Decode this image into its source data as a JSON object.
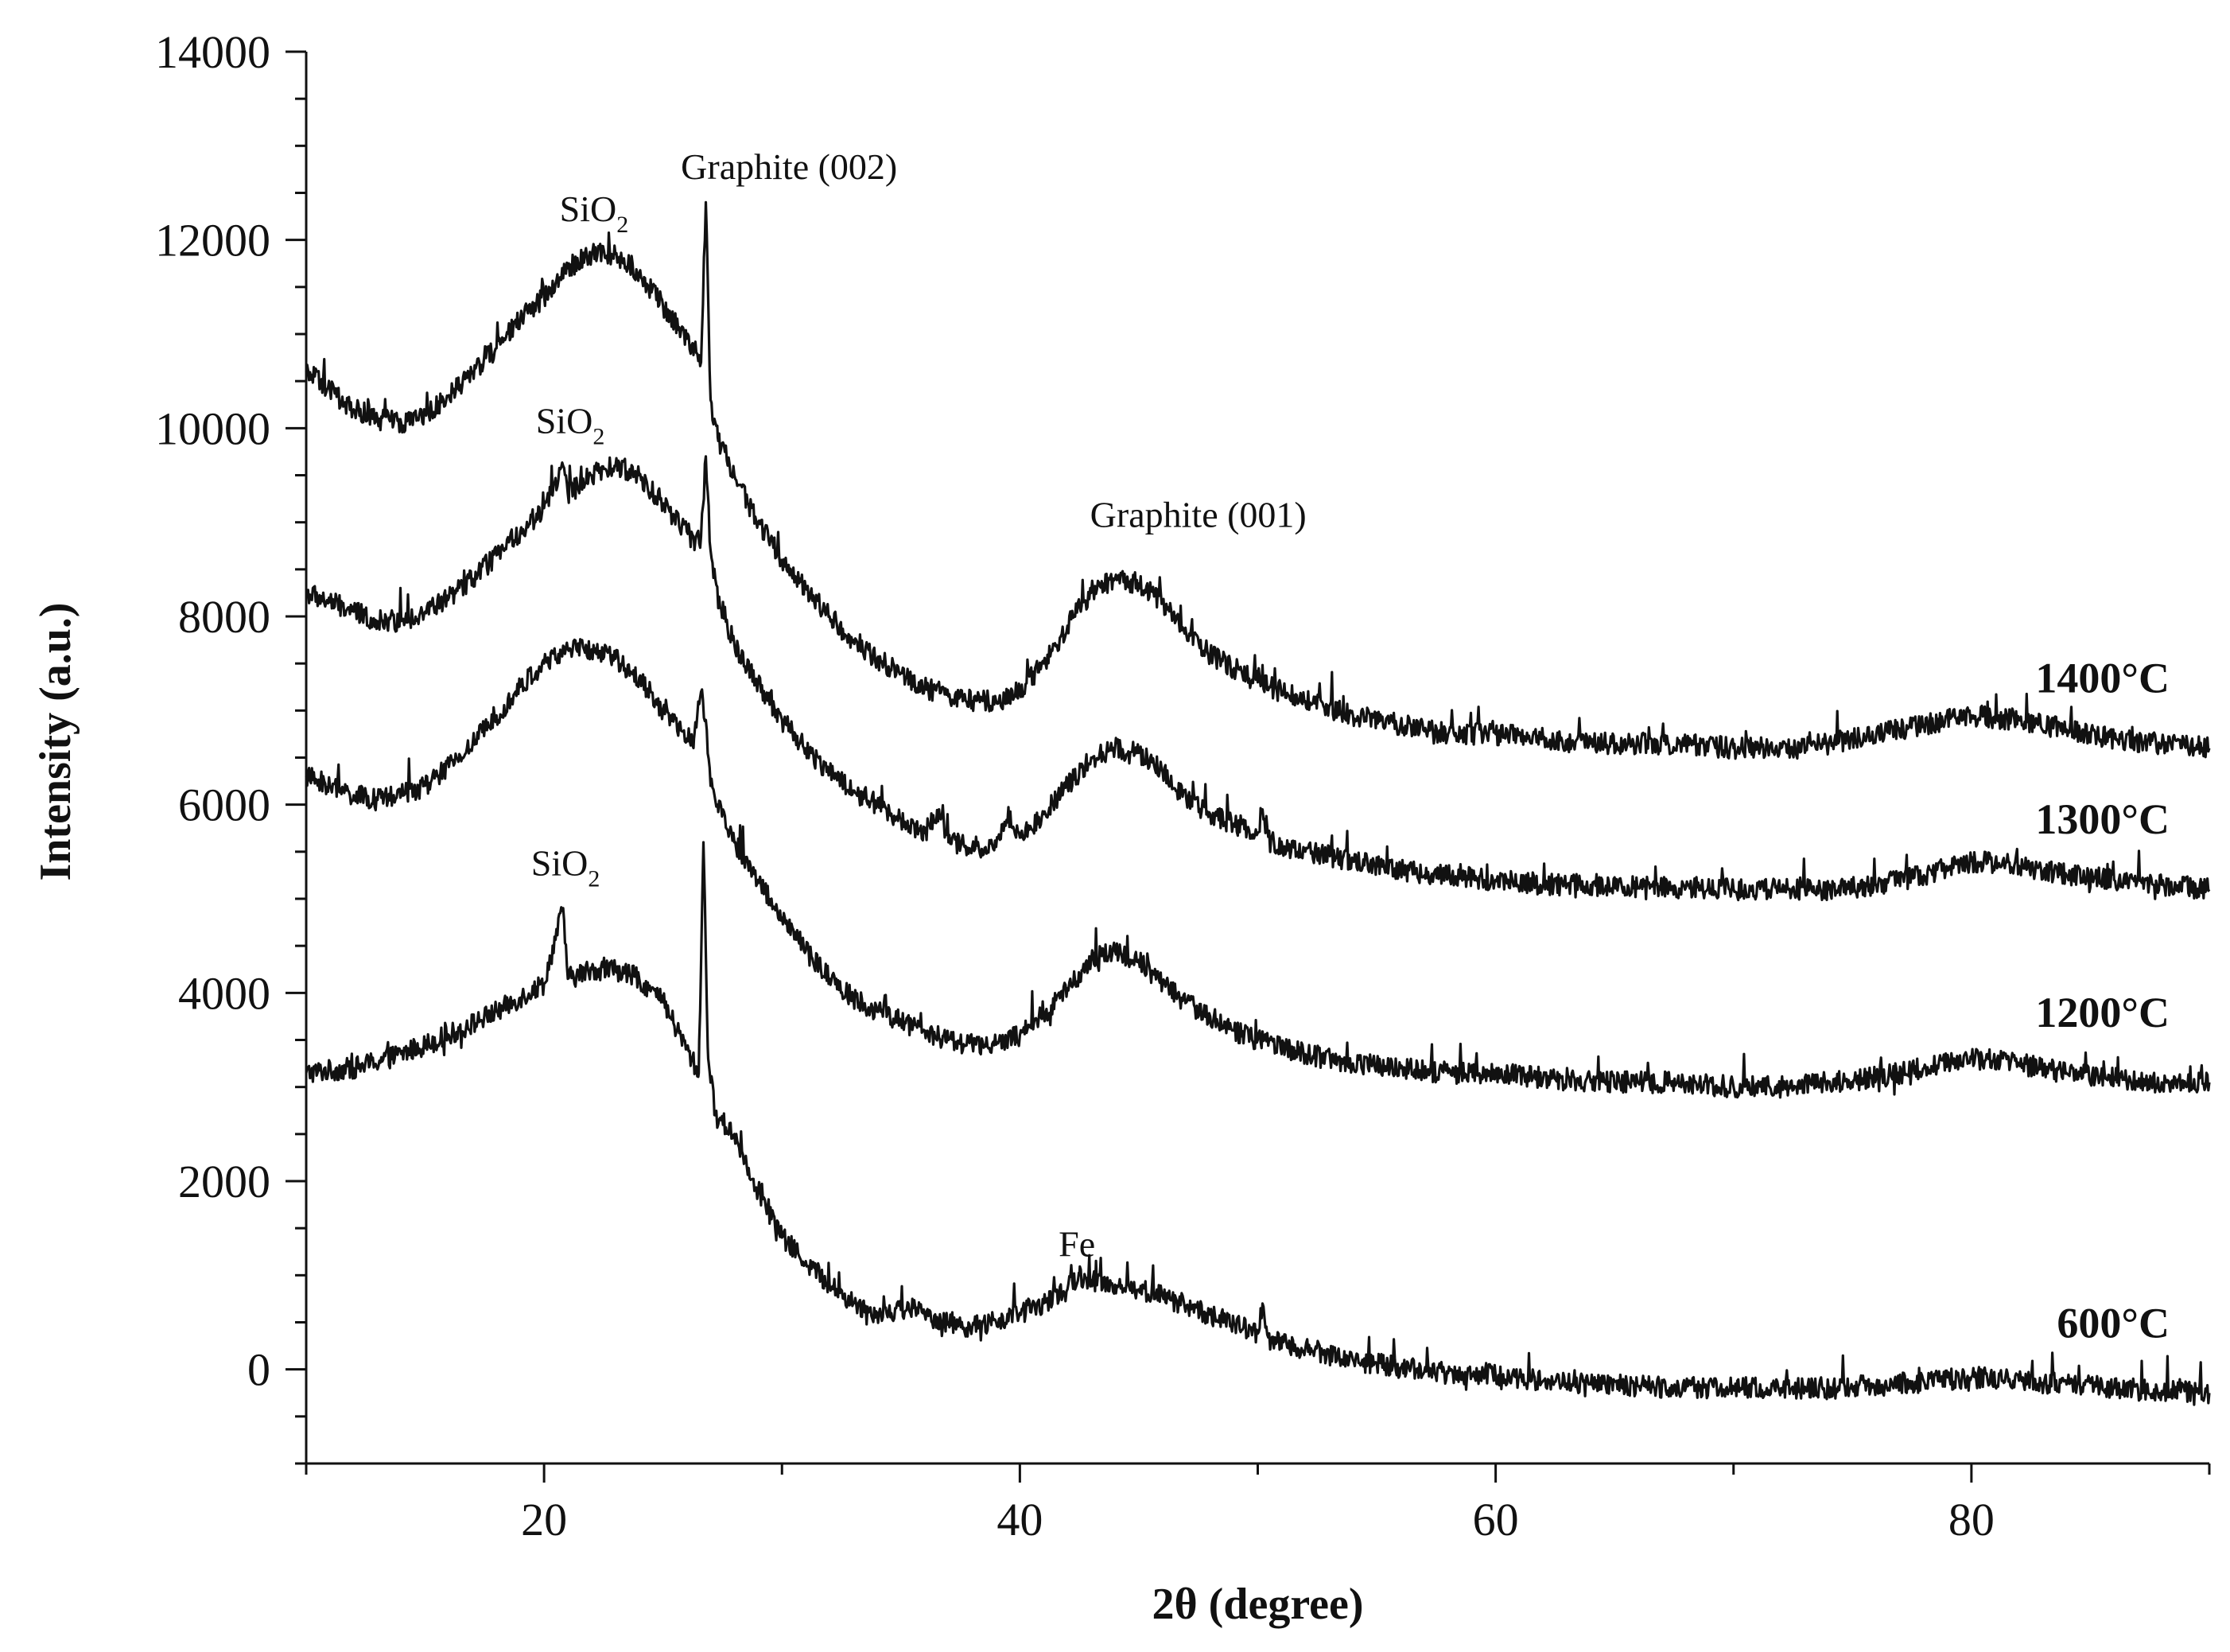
{
  "chart_data": {
    "type": "line",
    "title": "",
    "xlabel": "2θ (degree)",
    "ylabel": "Intensity (a.u.)",
    "xlim": [
      10,
      90
    ],
    "ylim": [
      -1000,
      14000
    ],
    "x_ticks": [
      20,
      40,
      60,
      80
    ],
    "x_minor_step": 10,
    "y_ticks": [
      0,
      2000,
      4000,
      6000,
      8000,
      10000,
      12000,
      14000
    ],
    "y_minor_step": 500,
    "grid": false,
    "series": [
      {
        "name": "600°C",
        "x": [
          10,
          12,
          14,
          16,
          18,
          19,
          20,
          20.8,
          21,
          22,
          23,
          24,
          25,
          26,
          26.5,
          26.7,
          26.9,
          27.2,
          28,
          29,
          30,
          31,
          32,
          33,
          34,
          35.5,
          36,
          37,
          38,
          39,
          40,
          41,
          42,
          42.5,
          43,
          44,
          45,
          46,
          47,
          48,
          49,
          50,
          50.2,
          50.5,
          52,
          54,
          56,
          58,
          60,
          62,
          64,
          66,
          68,
          70,
          72,
          74,
          76,
          78,
          80,
          82,
          84,
          86,
          88,
          90
        ],
        "y": [
          3150,
          3200,
          3350,
          3550,
          3800,
          3950,
          4100,
          4900,
          4150,
          4250,
          4250,
          4150,
          3900,
          3400,
          3150,
          5600,
          3300,
          2700,
          2500,
          1900,
          1400,
          1150,
          900,
          700,
          600,
          650,
          580,
          500,
          450,
          500,
          600,
          700,
          850,
          1000,
          950,
          900,
          850,
          780,
          680,
          580,
          480,
          380,
          700,
          300,
          220,
          100,
          20,
          -40,
          -60,
          -120,
          -160,
          -180,
          -190,
          -200,
          -200,
          -200,
          -170,
          -130,
          -80,
          -120,
          -160,
          -200,
          -230,
          -250
        ]
      },
      {
        "name": "1200°C",
        "x": [
          10,
          11,
          12,
          13,
          14,
          15,
          16,
          17,
          18,
          19,
          20,
          21,
          22,
          23,
          24,
          25,
          26,
          26.3,
          26.6,
          26.8,
          27,
          27.3,
          28,
          29,
          30,
          31,
          32,
          33,
          34,
          35,
          36,
          37,
          38,
          39,
          40,
          41,
          42,
          43,
          44,
          45,
          46,
          47,
          48,
          49,
          50,
          52,
          54,
          56,
          58,
          60,
          62,
          64,
          66,
          68,
          70,
          72,
          74,
          76,
          78,
          80,
          82,
          84,
          86,
          88,
          90
        ],
        "y": [
          6300,
          6200,
          6100,
          6050,
          6100,
          6200,
          6400,
          6650,
          6950,
          7250,
          7500,
          7650,
          7650,
          7550,
          7350,
          7000,
          6700,
          6700,
          7200,
          6900,
          6200,
          6000,
          5600,
          5200,
          4800,
          4450,
          4150,
          3950,
          3800,
          3700,
          3600,
          3500,
          3450,
          3450,
          3550,
          3750,
          4050,
          4350,
          4450,
          4350,
          4100,
          3900,
          3750,
          3600,
          3500,
          3350,
          3250,
          3200,
          3150,
          3150,
          3100,
          3050,
          3050,
          3050,
          3000,
          3000,
          3050,
          3100,
          3200,
          3300,
          3250,
          3150,
          3100,
          3050,
          3050
        ]
      },
      {
        "name": "1300°C",
        "x": [
          10,
          11,
          12,
          13,
          14,
          15,
          16,
          17,
          18,
          19,
          20,
          20.8,
          21,
          22,
          23,
          24,
          25,
          26,
          26.3,
          26.6,
          26.8,
          27,
          27.3,
          28,
          29,
          30,
          31,
          32,
          33,
          34,
          35,
          36,
          36.6,
          37,
          38,
          39,
          39.5,
          40,
          41,
          42,
          43,
          44,
          45,
          46,
          47,
          48,
          49,
          50,
          50.2,
          50.5,
          52,
          54,
          56,
          58,
          60,
          62,
          64,
          66,
          68,
          70,
          72,
          74,
          76,
          78,
          80,
          82,
          84,
          86,
          88,
          90
        ],
        "y": [
          8250,
          8150,
          8050,
          7950,
          7950,
          8050,
          8200,
          8400,
          8650,
          8900,
          9150,
          9600,
          9300,
          9500,
          9600,
          9500,
          9200,
          8900,
          8800,
          8850,
          9700,
          8700,
          8200,
          7700,
          7300,
          6900,
          6600,
          6350,
          6150,
          6000,
          5850,
          5700,
          5950,
          5600,
          5550,
          5550,
          5900,
          5650,
          5900,
          6200,
          6500,
          6600,
          6550,
          6350,
          6050,
          5900,
          5800,
          5700,
          5950,
          5600,
          5500,
          5400,
          5300,
          5250,
          5200,
          5150,
          5150,
          5120,
          5120,
          5100,
          5100,
          5100,
          5150,
          5250,
          5400,
          5350,
          5250,
          5200,
          5150,
          5100
        ]
      },
      {
        "name": "1400°C",
        "x": [
          10,
          11,
          12,
          13,
          14,
          15,
          16,
          17,
          18,
          19,
          20,
          21,
          22,
          23,
          24,
          25,
          26,
          26.4,
          26.6,
          26.8,
          27,
          27.3,
          28,
          29,
          30,
          31,
          32,
          33,
          34,
          35,
          36,
          37,
          38,
          39,
          40,
          41,
          42,
          43,
          44,
          45,
          46,
          47,
          48,
          49,
          50,
          52,
          54,
          56,
          58,
          60,
          62,
          64,
          66,
          68,
          70,
          72,
          74,
          76,
          78,
          80,
          82,
          84,
          86,
          88,
          90
        ],
        "y": [
          10600,
          10400,
          10200,
          10100,
          10050,
          10150,
          10350,
          10600,
          10850,
          11150,
          11400,
          11700,
          11850,
          11850,
          11650,
          11300,
          10950,
          10800,
          10700,
          12400,
          10300,
          9900,
          9500,
          9000,
          8600,
          8300,
          8000,
          7750,
          7550,
          7400,
          7250,
          7150,
          7100,
          7100,
          7200,
          7500,
          7900,
          8250,
          8400,
          8350,
          8150,
          7800,
          7600,
          7450,
          7300,
          7100,
          6950,
          6850,
          6750,
          6750,
          6700,
          6650,
          6650,
          6650,
          6600,
          6600,
          6650,
          6750,
          6850,
          6950,
          6900,
          6800,
          6700,
          6650,
          6600
        ]
      }
    ],
    "annotations": [
      {
        "text": "Graphite (002)",
        "x": 30.3,
        "y": 12650
      },
      {
        "text": "Graphite (001)",
        "x": 47.5,
        "y": 8950
      },
      {
        "text": "SiO",
        "sub": "2",
        "x": 22.1,
        "y": 12200
      },
      {
        "text": "SiO",
        "sub": "2",
        "x": 21.1,
        "y": 9950
      },
      {
        "text": "SiO",
        "sub": "2",
        "x": 20.9,
        "y": 5250
      },
      {
        "text": "Fe",
        "x": 42.4,
        "y": 1200
      }
    ]
  }
}
